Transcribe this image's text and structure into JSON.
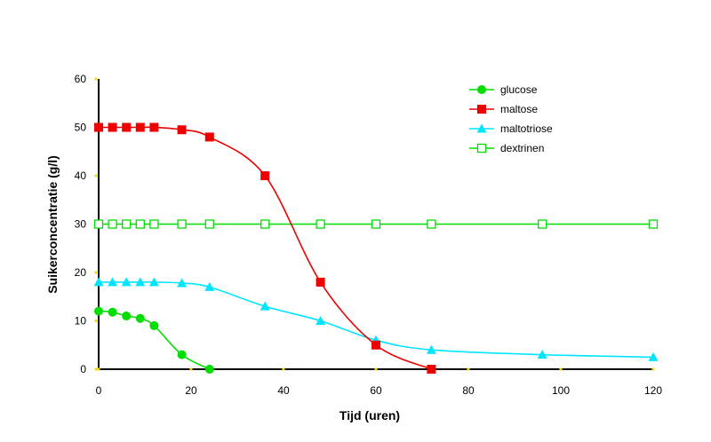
{
  "chart_data": {
    "type": "line",
    "xlabel": "Tijd (uren)",
    "ylabel": "Suikerconcentratie (g/l)",
    "xlim": [
      0,
      120
    ],
    "ylim": [
      0,
      60
    ],
    "xticks": [
      0,
      20,
      40,
      60,
      80,
      100,
      120
    ],
    "yticks": [
      0,
      10,
      20,
      30,
      40,
      50,
      60
    ],
    "grid": false,
    "legend_position": "top-right",
    "series": [
      {
        "name": "glucose",
        "color": "#00dd00",
        "marker": "circle",
        "x": [
          0,
          3,
          6,
          9,
          12,
          18,
          24
        ],
        "y": [
          12,
          11.8,
          11,
          10.5,
          9,
          3,
          0
        ]
      },
      {
        "name": "maltose",
        "color": "#ee0000",
        "marker": "square",
        "x": [
          0,
          3,
          6,
          9,
          12,
          18,
          24,
          36,
          48,
          60,
          72
        ],
        "y": [
          50,
          50,
          50,
          50,
          50,
          49.5,
          48,
          40,
          18,
          5,
          0
        ]
      },
      {
        "name": "maltotriose",
        "color": "#00e5ff",
        "marker": "triangle",
        "x": [
          0,
          3,
          6,
          9,
          12,
          18,
          24,
          36,
          48,
          60,
          72,
          96,
          120
        ],
        "y": [
          18,
          18,
          18,
          18,
          18,
          17.8,
          17,
          13,
          10,
          6,
          4,
          3,
          2.5
        ]
      },
      {
        "name": "dextrinen",
        "color": "#00dd00",
        "marker": "open-square",
        "x": [
          0,
          3,
          6,
          9,
          12,
          18,
          24,
          36,
          48,
          60,
          72,
          96,
          120
        ],
        "y": [
          30,
          30,
          30,
          30,
          30,
          30,
          30,
          30,
          30,
          30,
          30,
          30,
          30
        ]
      }
    ]
  }
}
